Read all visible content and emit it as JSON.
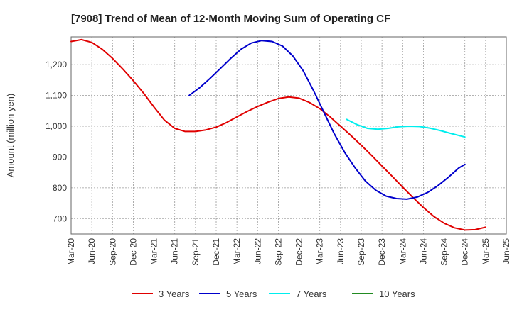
{
  "chart_data": {
    "type": "line",
    "title": "[7908]  Trend of Mean of 12-Month Moving Sum of Operating CF",
    "xlabel": "",
    "ylabel": "Amount (million yen)",
    "x_ticks": [
      "Mar-20",
      "Jun-20",
      "Sep-20",
      "Dec-20",
      "Mar-21",
      "Jun-21",
      "Sep-21",
      "Dec-21",
      "Mar-22",
      "Jun-22",
      "Sep-22",
      "Dec-22",
      "Mar-23",
      "Jun-23",
      "Sep-23",
      "Dec-23",
      "Mar-24",
      "Jun-24",
      "Sep-24",
      "Dec-24",
      "Mar-25",
      "Jun-25"
    ],
    "y_ticks": [
      700,
      800,
      900,
      1000,
      1100,
      1200
    ],
    "y_tick_labels": [
      "700",
      "800",
      "900",
      "1,000",
      "1,100",
      "1,200"
    ],
    "ylim": [
      650,
      1290
    ],
    "xlim_index": [
      0,
      21
    ],
    "grid": true,
    "legend_position": "bottom",
    "series": [
      {
        "name": "3 Years",
        "color": "#e00000",
        "points": [
          [
            0,
            1275
          ],
          [
            0.5,
            1281
          ],
          [
            1,
            1272
          ],
          [
            1.5,
            1250
          ],
          [
            2,
            1220
          ],
          [
            2.5,
            1185
          ],
          [
            3,
            1148
          ],
          [
            3.5,
            1107
          ],
          [
            4,
            1062
          ],
          [
            4.5,
            1020
          ],
          [
            5,
            993
          ],
          [
            5.5,
            983
          ],
          [
            6,
            983
          ],
          [
            6.5,
            988
          ],
          [
            7,
            997
          ],
          [
            7.5,
            1012
          ],
          [
            8,
            1030
          ],
          [
            8.5,
            1048
          ],
          [
            9,
            1064
          ],
          [
            9.5,
            1078
          ],
          [
            10,
            1090
          ],
          [
            10.5,
            1095
          ],
          [
            11,
            1091
          ],
          [
            11.5,
            1077
          ],
          [
            12,
            1057
          ],
          [
            12.5,
            1030
          ],
          [
            13,
            1000
          ],
          [
            13.5,
            970
          ],
          [
            14,
            938
          ],
          [
            14.5,
            905
          ],
          [
            15,
            871
          ],
          [
            15.5,
            837
          ],
          [
            16,
            802
          ],
          [
            16.5,
            768
          ],
          [
            17,
            736
          ],
          [
            17.5,
            707
          ],
          [
            18,
            685
          ],
          [
            18.5,
            670
          ],
          [
            19,
            663
          ],
          [
            19.5,
            664
          ],
          [
            20,
            672
          ]
        ]
      },
      {
        "name": "5 Years",
        "color": "#0000cc",
        "points": [
          [
            5.7,
            1100
          ],
          [
            6.2,
            1125
          ],
          [
            6.7,
            1155
          ],
          [
            7.2,
            1187
          ],
          [
            7.7,
            1220
          ],
          [
            8.2,
            1250
          ],
          [
            8.7,
            1270
          ],
          [
            9.2,
            1278
          ],
          [
            9.7,
            1275
          ],
          [
            10.2,
            1260
          ],
          [
            10.7,
            1228
          ],
          [
            11.2,
            1180
          ],
          [
            11.7,
            1115
          ],
          [
            12.2,
            1045
          ],
          [
            12.7,
            975
          ],
          [
            13.2,
            915
          ],
          [
            13.7,
            865
          ],
          [
            14.2,
            822
          ],
          [
            14.7,
            792
          ],
          [
            15.2,
            773
          ],
          [
            15.7,
            765
          ],
          [
            16.2,
            763
          ],
          [
            16.7,
            770
          ],
          [
            17.2,
            785
          ],
          [
            17.7,
            807
          ],
          [
            18.2,
            834
          ],
          [
            18.7,
            864
          ],
          [
            19,
            876
          ]
        ]
      },
      {
        "name": "7 Years",
        "color": "#00eeee",
        "points": [
          [
            13.3,
            1022
          ],
          [
            13.8,
            1005
          ],
          [
            14.3,
            993
          ],
          [
            14.8,
            990
          ],
          [
            15.3,
            993
          ],
          [
            15.8,
            998
          ],
          [
            16.3,
            1000
          ],
          [
            16.8,
            999
          ],
          [
            17.3,
            994
          ],
          [
            17.8,
            986
          ],
          [
            18.3,
            977
          ],
          [
            19,
            965
          ]
        ]
      },
      {
        "name": "10 Years",
        "color": "#228b22",
        "points": []
      }
    ]
  }
}
